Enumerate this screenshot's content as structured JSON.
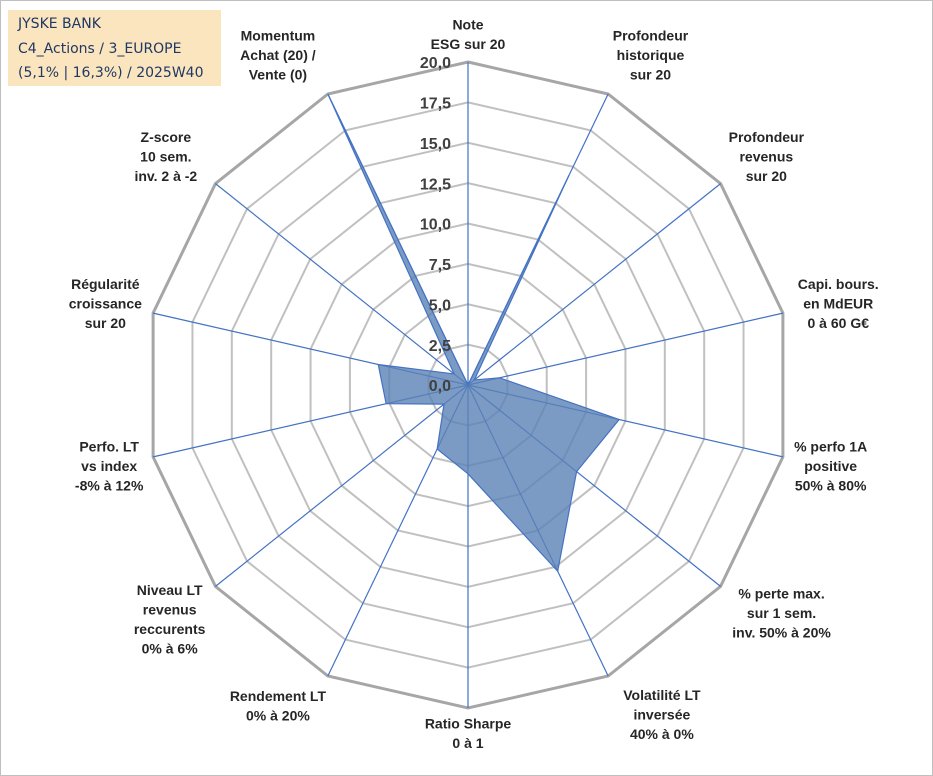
{
  "header": {
    "line1": "JYSKE BANK",
    "line2": "C4_Actions / 3_EUROPE",
    "line3": "(5,1% | 16,3%) / 2025W40"
  },
  "chart_data": {
    "type": "radar",
    "scale": {
      "min": 0,
      "max": 20,
      "step": 2.5
    },
    "tick_labels": [
      "0,0",
      "2,5",
      "5,0",
      "7,5",
      "10,0",
      "12,5",
      "15,0",
      "17,5",
      "20,0"
    ],
    "axes": [
      {
        "lines": [
          "Note",
          "ESG sur 20"
        ]
      },
      {
        "lines": [
          "Profondeur",
          "historique",
          "sur 20"
        ]
      },
      {
        "lines": [
          "Profondeur",
          "revenus",
          "sur 20"
        ]
      },
      {
        "lines": [
          "Capi. bours.",
          "en MdEUR",
          "0 à 60 G€"
        ]
      },
      {
        "lines": [
          "% perfo 1A",
          "positive",
          "50% à 80%"
        ]
      },
      {
        "lines": [
          "% perte max.",
          "sur 1 sem.",
          "inv. 50% à 20%"
        ]
      },
      {
        "lines": [
          "Volatilité LT",
          "inversée",
          "40% à 0%"
        ]
      },
      {
        "lines": [
          "Ratio Sharpe",
          "0 à 1"
        ]
      },
      {
        "lines": [
          "Rendement LT",
          "0% à 20%"
        ]
      },
      {
        "lines": [
          "Niveau LT",
          "revenus",
          "reccurents",
          "0% à 6%"
        ]
      },
      {
        "lines": [
          "Perfo. LT",
          "vs index",
          "-8% à 12%"
        ]
      },
      {
        "lines": [
          "Régularité",
          "croissance",
          "sur 20"
        ]
      },
      {
        "lines": [
          "Z-score",
          "10 sem.",
          "inv. 2 à -2"
        ]
      },
      {
        "lines": [
          "Momentum",
          "Achat (20) /",
          "Vente (0)"
        ]
      }
    ],
    "values": [
      0,
      14.4,
      0.5,
      2.0,
      9.6,
      8.6,
      12.8,
      5.5,
      4.4,
      1.9,
      5.2,
      5.7,
      1.1,
      20.0
    ],
    "colors": {
      "fill": "#5b82b5",
      "fill_opacity": 0.8,
      "stroke": "#4472c4",
      "spoke": "#4472c4",
      "grid": "#c0c0c0",
      "outer": "#a6a6a6"
    },
    "grid": true
  }
}
